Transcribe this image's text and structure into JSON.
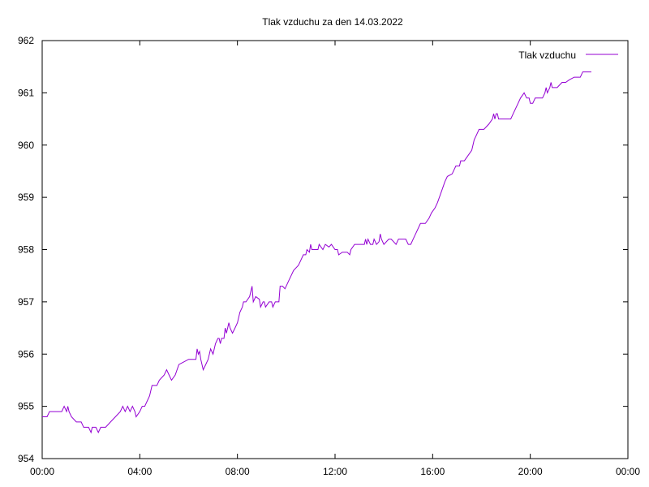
{
  "chart_data": {
    "type": "line",
    "title": "Tlak vzduchu za den 14.03.2022",
    "xlabel": "",
    "ylabel": "",
    "x_ticks": [
      "00:00",
      "04:00",
      "08:00",
      "12:00",
      "16:00",
      "20:00",
      "00:00"
    ],
    "y_ticks": [
      "954",
      "955",
      "956",
      "957",
      "958",
      "959",
      "960",
      "961",
      "962"
    ],
    "xlim": [
      0,
      24
    ],
    "ylim": [
      954,
      962
    ],
    "grid": false,
    "legend_position": "top-right",
    "series": [
      {
        "name": "Tlak vzduchu",
        "color": "#9400d3",
        "points": [
          [
            0.0,
            954.8
          ],
          [
            0.2,
            954.8
          ],
          [
            0.3,
            954.9
          ],
          [
            0.5,
            954.9
          ],
          [
            0.8,
            954.9
          ],
          [
            0.9,
            955.0
          ],
          [
            1.0,
            954.9
          ],
          [
            1.05,
            955.0
          ],
          [
            1.1,
            954.9
          ],
          [
            1.2,
            954.8
          ],
          [
            1.4,
            954.7
          ],
          [
            1.6,
            954.7
          ],
          [
            1.7,
            954.6
          ],
          [
            1.9,
            954.6
          ],
          [
            2.0,
            954.5
          ],
          [
            2.05,
            954.6
          ],
          [
            2.2,
            954.6
          ],
          [
            2.3,
            954.5
          ],
          [
            2.4,
            954.6
          ],
          [
            2.6,
            954.6
          ],
          [
            2.8,
            954.7
          ],
          [
            3.0,
            954.8
          ],
          [
            3.2,
            954.9
          ],
          [
            3.3,
            955.0
          ],
          [
            3.4,
            954.9
          ],
          [
            3.5,
            955.0
          ],
          [
            3.6,
            954.9
          ],
          [
            3.7,
            955.0
          ],
          [
            3.8,
            954.9
          ],
          [
            3.85,
            954.8
          ],
          [
            4.0,
            954.9
          ],
          [
            4.1,
            955.0
          ],
          [
            4.2,
            955.0
          ],
          [
            4.4,
            955.2
          ],
          [
            4.5,
            955.4
          ],
          [
            4.7,
            955.4
          ],
          [
            4.8,
            955.5
          ],
          [
            5.0,
            955.6
          ],
          [
            5.1,
            955.7
          ],
          [
            5.2,
            955.6
          ],
          [
            5.3,
            955.5
          ],
          [
            5.45,
            955.6
          ],
          [
            5.6,
            955.8
          ],
          [
            5.8,
            955.85
          ],
          [
            6.0,
            955.9
          ],
          [
            6.3,
            955.9
          ],
          [
            6.35,
            956.1
          ],
          [
            6.4,
            956.0
          ],
          [
            6.45,
            956.05
          ],
          [
            6.5,
            955.9
          ],
          [
            6.6,
            955.7
          ],
          [
            6.7,
            955.8
          ],
          [
            6.8,
            955.9
          ],
          [
            6.9,
            956.1
          ],
          [
            7.0,
            956.0
          ],
          [
            7.1,
            956.2
          ],
          [
            7.2,
            956.3
          ],
          [
            7.25,
            956.3
          ],
          [
            7.3,
            956.2
          ],
          [
            7.35,
            956.3
          ],
          [
            7.45,
            956.3
          ],
          [
            7.5,
            956.5
          ],
          [
            7.55,
            956.4
          ],
          [
            7.6,
            956.5
          ],
          [
            7.65,
            956.6
          ],
          [
            7.7,
            956.5
          ],
          [
            7.8,
            956.4
          ],
          [
            7.9,
            956.5
          ],
          [
            8.0,
            956.6
          ],
          [
            8.1,
            956.8
          ],
          [
            8.2,
            956.9
          ],
          [
            8.25,
            957.0
          ],
          [
            8.35,
            957.0
          ],
          [
            8.5,
            957.1
          ],
          [
            8.6,
            957.3
          ],
          [
            8.65,
            957.0
          ],
          [
            8.75,
            957.1
          ],
          [
            8.9,
            957.05
          ],
          [
            8.95,
            956.9
          ],
          [
            9.05,
            957.0
          ],
          [
            9.1,
            957.0
          ],
          [
            9.15,
            956.9
          ],
          [
            9.3,
            957.0
          ],
          [
            9.4,
            957.0
          ],
          [
            9.45,
            956.9
          ],
          [
            9.55,
            957.0
          ],
          [
            9.7,
            957.0
          ],
          [
            9.75,
            957.3
          ],
          [
            9.85,
            957.3
          ],
          [
            9.95,
            957.25
          ],
          [
            10.1,
            957.4
          ],
          [
            10.3,
            957.6
          ],
          [
            10.5,
            957.7
          ],
          [
            10.6,
            957.8
          ],
          [
            10.7,
            957.9
          ],
          [
            10.8,
            957.9
          ],
          [
            10.85,
            958.0
          ],
          [
            10.95,
            957.95
          ],
          [
            11.0,
            958.1
          ],
          [
            11.05,
            958.0
          ],
          [
            11.3,
            958.0
          ],
          [
            11.35,
            958.1
          ],
          [
            11.5,
            958.0
          ],
          [
            11.6,
            958.1
          ],
          [
            11.75,
            958.05
          ],
          [
            11.85,
            958.1
          ],
          [
            12.0,
            958.0
          ],
          [
            12.1,
            958.0
          ],
          [
            12.15,
            957.9
          ],
          [
            12.3,
            957.95
          ],
          [
            12.5,
            957.95
          ],
          [
            12.6,
            957.9
          ],
          [
            12.65,
            958.0
          ],
          [
            12.8,
            958.1
          ],
          [
            13.0,
            958.1
          ],
          [
            13.2,
            958.1
          ],
          [
            13.25,
            958.2
          ],
          [
            13.3,
            958.1
          ],
          [
            13.35,
            958.2
          ],
          [
            13.45,
            958.1
          ],
          [
            13.55,
            958.1
          ],
          [
            13.6,
            958.2
          ],
          [
            13.7,
            958.1
          ],
          [
            13.8,
            958.15
          ],
          [
            13.85,
            958.3
          ],
          [
            13.9,
            958.2
          ],
          [
            14.0,
            958.1
          ],
          [
            14.2,
            958.2
          ],
          [
            14.3,
            958.2
          ],
          [
            14.4,
            958.15
          ],
          [
            14.5,
            958.1
          ],
          [
            14.6,
            958.2
          ],
          [
            14.8,
            958.2
          ],
          [
            14.9,
            958.2
          ],
          [
            15.0,
            958.1
          ],
          [
            15.1,
            958.1
          ],
          [
            15.2,
            958.2
          ],
          [
            15.3,
            958.3
          ],
          [
            15.5,
            958.5
          ],
          [
            15.6,
            958.5
          ],
          [
            15.7,
            958.5
          ],
          [
            15.85,
            958.6
          ],
          [
            15.95,
            958.7
          ],
          [
            16.1,
            958.8
          ],
          [
            16.2,
            958.9
          ],
          [
            16.35,
            959.1
          ],
          [
            16.5,
            959.3
          ],
          [
            16.6,
            959.4
          ],
          [
            16.8,
            959.45
          ],
          [
            16.95,
            959.6
          ],
          [
            17.1,
            959.6
          ],
          [
            17.15,
            959.7
          ],
          [
            17.3,
            959.7
          ],
          [
            17.45,
            959.8
          ],
          [
            17.6,
            959.9
          ],
          [
            17.65,
            960.0
          ],
          [
            17.7,
            960.1
          ],
          [
            17.8,
            960.2
          ],
          [
            17.9,
            960.3
          ],
          [
            18.1,
            960.3
          ],
          [
            18.3,
            960.4
          ],
          [
            18.45,
            960.5
          ],
          [
            18.5,
            960.6
          ],
          [
            18.55,
            960.5
          ],
          [
            18.6,
            960.6
          ],
          [
            18.65,
            960.6
          ],
          [
            18.7,
            960.5
          ],
          [
            18.9,
            960.5
          ],
          [
            19.0,
            960.5
          ],
          [
            19.2,
            960.5
          ],
          [
            19.3,
            960.6
          ],
          [
            19.4,
            960.7
          ],
          [
            19.5,
            960.8
          ],
          [
            19.6,
            960.9
          ],
          [
            19.75,
            961.0
          ],
          [
            19.85,
            960.9
          ],
          [
            19.95,
            960.9
          ],
          [
            20.0,
            960.8
          ],
          [
            20.1,
            960.8
          ],
          [
            20.2,
            960.9
          ],
          [
            20.4,
            960.9
          ],
          [
            20.5,
            960.9
          ],
          [
            20.6,
            961.0
          ],
          [
            20.65,
            961.1
          ],
          [
            20.7,
            961.0
          ],
          [
            20.8,
            961.1
          ],
          [
            20.85,
            961.2
          ],
          [
            20.9,
            961.1
          ],
          [
            21.0,
            961.1
          ],
          [
            21.1,
            961.1
          ],
          [
            21.3,
            961.2
          ],
          [
            21.45,
            961.2
          ],
          [
            21.6,
            961.25
          ],
          [
            21.8,
            961.3
          ],
          [
            21.9,
            961.3
          ],
          [
            22.05,
            961.3
          ],
          [
            22.15,
            961.4
          ],
          [
            22.5,
            961.4
          ]
        ]
      }
    ]
  }
}
